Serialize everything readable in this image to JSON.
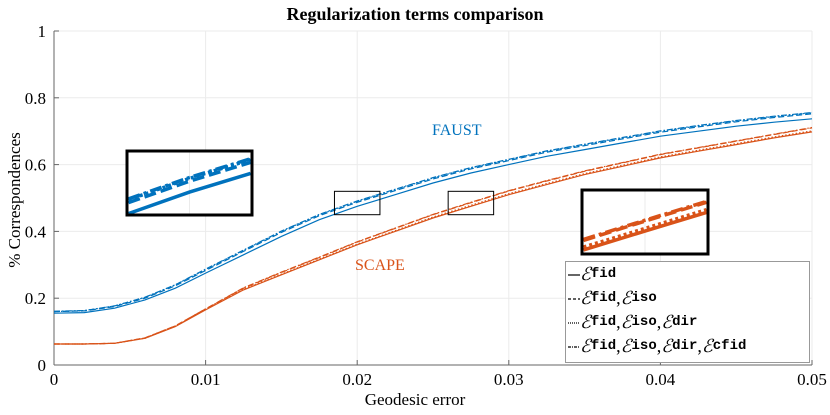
{
  "chart_data": {
    "type": "line",
    "title": "Regularization terms comparison",
    "xlabel": "Geodesic error",
    "ylabel": "% Correspondences",
    "xlim": [
      0,
      0.05
    ],
    "ylim": [
      0,
      1
    ],
    "xticks": [
      "0",
      "0.01",
      "0.02",
      "0.03",
      "0.04",
      "0.05"
    ],
    "yticks": [
      "0",
      "0.2",
      "0.4",
      "0.6",
      "0.8",
      "1"
    ],
    "grid": true,
    "legend_position": "bottom-right",
    "legend": [
      {
        "style": "solid",
        "terms": [
          "fid"
        ]
      },
      {
        "style": "dashed",
        "terms": [
          "fid",
          "iso"
        ]
      },
      {
        "style": "dotted",
        "terms": [
          "fid",
          "iso",
          "dir"
        ]
      },
      {
        "style": "dashdot",
        "terms": [
          "fid",
          "iso",
          "dir",
          "cfid"
        ]
      }
    ],
    "legend_symbol": "ℰ",
    "annotations": [
      {
        "text": "FAUST",
        "color": "#0072BD"
      },
      {
        "text": "SCAPE",
        "color": "#D95319"
      }
    ],
    "x": [
      0,
      0.002,
      0.004,
      0.006,
      0.008,
      0.01,
      0.0125,
      0.015,
      0.0175,
      0.02,
      0.0225,
      0.025,
      0.0275,
      0.03,
      0.0325,
      0.035,
      0.0375,
      0.04,
      0.0425,
      0.045,
      0.0475,
      0.05
    ],
    "groups": [
      {
        "label": "FAUST",
        "color": "#0072BD",
        "series": [
          {
            "style": "solid",
            "values": [
              0.155,
              0.157,
              0.17,
              0.195,
              0.23,
              0.275,
              0.33,
              0.385,
              0.435,
              0.475,
              0.51,
              0.545,
              0.575,
              0.6,
              0.625,
              0.645,
              0.665,
              0.685,
              0.7,
              0.715,
              0.727,
              0.737
            ]
          },
          {
            "style": "dashed",
            "values": [
              0.16,
              0.162,
              0.175,
              0.2,
              0.237,
              0.283,
              0.34,
              0.397,
              0.447,
              0.487,
              0.522,
              0.557,
              0.587,
              0.612,
              0.637,
              0.657,
              0.677,
              0.697,
              0.713,
              0.728,
              0.741,
              0.752
            ]
          },
          {
            "style": "dotted",
            "values": [
              0.16,
              0.163,
              0.177,
              0.202,
              0.24,
              0.286,
              0.343,
              0.4,
              0.45,
              0.49,
              0.525,
              0.56,
              0.59,
              0.615,
              0.64,
              0.66,
              0.68,
              0.7,
              0.716,
              0.731,
              0.744,
              0.755
            ]
          },
          {
            "style": "dashdot",
            "values": [
              0.161,
              0.163,
              0.177,
              0.203,
              0.24,
              0.287,
              0.344,
              0.401,
              0.451,
              0.491,
              0.526,
              0.561,
              0.591,
              0.616,
              0.641,
              0.661,
              0.681,
              0.701,
              0.717,
              0.732,
              0.745,
              0.756
            ]
          }
        ]
      },
      {
        "label": "SCAPE",
        "color": "#D95319",
        "series": [
          {
            "style": "solid",
            "values": [
              0.063,
              0.063,
              0.065,
              0.08,
              0.115,
              0.165,
              0.225,
              0.27,
              0.315,
              0.36,
              0.4,
              0.44,
              0.475,
              0.51,
              0.54,
              0.57,
              0.595,
              0.62,
              0.64,
              0.66,
              0.68,
              0.698
            ]
          },
          {
            "style": "dashed",
            "values": [
              0.063,
              0.063,
              0.065,
              0.081,
              0.117,
              0.168,
              0.23,
              0.277,
              0.322,
              0.368,
              0.409,
              0.45,
              0.486,
              0.521,
              0.551,
              0.58,
              0.605,
              0.63,
              0.65,
              0.67,
              0.69,
              0.71
            ]
          },
          {
            "style": "dotted",
            "values": [
              0.063,
              0.063,
              0.065,
              0.08,
              0.116,
              0.166,
              0.227,
              0.272,
              0.317,
              0.362,
              0.402,
              0.443,
              0.478,
              0.513,
              0.543,
              0.573,
              0.598,
              0.623,
              0.643,
              0.663,
              0.683,
              0.701
            ]
          },
          {
            "style": "dashdot",
            "values": [
              0.063,
              0.063,
              0.065,
              0.081,
              0.117,
              0.168,
              0.231,
              0.278,
              0.323,
              0.369,
              0.41,
              0.451,
              0.487,
              0.522,
              0.552,
              0.581,
              0.606,
              0.631,
              0.651,
              0.671,
              0.691,
              0.711
            ]
          }
        ]
      }
    ],
    "zoom_regions": [
      {
        "group": "FAUST",
        "xlim": [
          0.0185,
          0.0215
        ],
        "ylim": [
          0.45,
          0.52
        ]
      },
      {
        "group": "SCAPE",
        "xlim": [
          0.026,
          0.029
        ],
        "ylim": [
          0.45,
          0.52
        ]
      }
    ]
  }
}
